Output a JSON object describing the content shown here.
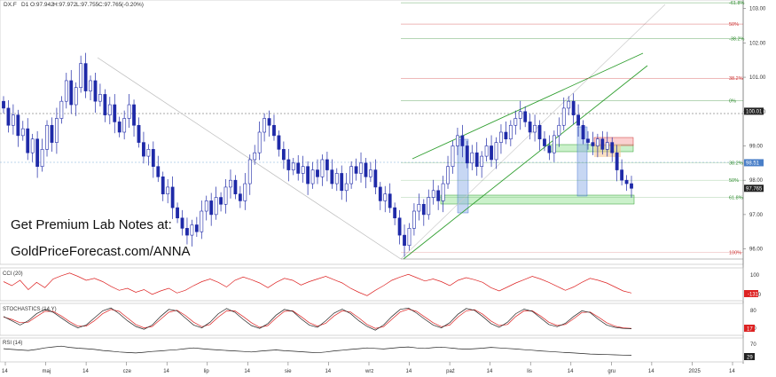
{
  "header": {
    "symbol": "DX.F",
    "timeframe": "D1",
    "open": "O:97.942",
    "high": "H:97.972",
    "low": "L:97.755",
    "close": "C:97.765",
    "change": "(-0.20%)"
  },
  "promo": {
    "line1": "Get Premium Lab Notes at:",
    "line2": "GoldPriceForecast.com/ANNA"
  },
  "colors": {
    "bull": "#1f2aa8",
    "bear": "#1f2aa8",
    "trend": "#2e9e2e",
    "fib_red": "#cc3333",
    "fib_green": "#2e8b2e",
    "cci": "#dd2222",
    "stoch_main": "#222222",
    "stoch_signal": "#dd2222",
    "rsi": "#222222",
    "zone_green": "#90e090",
    "zone_blue": "#8fb0e8",
    "zone_red": "#f4a0a0"
  },
  "chart_data": {
    "type": "candlestick",
    "price_axis": {
      "range": [
        95.55,
        103.25
      ],
      "ticks": [
        "103.00",
        "102.00",
        "101.00",
        "100.00",
        "99.00",
        "98.00",
        "97.00",
        "96.00"
      ],
      "tick_values": [
        103,
        102,
        101,
        100,
        99,
        98,
        97,
        96
      ],
      "markers": [
        {
          "label": "100.01",
          "value": 100.01,
          "style": "dark"
        },
        {
          "label": "98.51",
          "value": 98.51,
          "style": "blue"
        },
        {
          "label": "97.765",
          "value": 97.765,
          "style": "dark"
        }
      ]
    },
    "x_axis_labels": [
      "14",
      "maj",
      "14",
      "cze",
      "14",
      "lip",
      "14",
      "sie",
      "14",
      "wrz",
      "14",
      "paź",
      "14",
      "lis",
      "14",
      "gru",
      "14",
      "2025",
      "14"
    ],
    "fib_levels_upper": [
      {
        "label": "-61.8%",
        "value": 103.17,
        "color": "green"
      },
      {
        "label": "50%",
        "value": 102.55,
        "color": "red"
      },
      {
        "label": "-38.2%",
        "value": 102.12,
        "color": "green"
      },
      {
        "label": "38.2%",
        "value": 100.97,
        "color": "red"
      },
      {
        "label": "0%",
        "value": 100.32,
        "color": "green"
      }
    ],
    "fib_levels_lower": [
      {
        "label": "38.2%",
        "value": 98.51,
        "color": "green"
      },
      {
        "label": "50%",
        "value": 98.0,
        "color": "green"
      },
      {
        "label": "61.8%",
        "value": 97.5,
        "color": "green"
      },
      {
        "label": "100%",
        "value": 95.9,
        "color": "red"
      }
    ],
    "closes": [
      100.1,
      99.6,
      99.9,
      99.3,
      99.5,
      98.8,
      99.2,
      98.4,
      98.9,
      99.6,
      99.1,
      99.8,
      100.3,
      100.9,
      100.2,
      100.7,
      101.4,
      100.6,
      100.9,
      100.3,
      100.5,
      99.9,
      100.2,
      99.7,
      99.4,
      99.8,
      100.2,
      99.6,
      99.1,
      98.7,
      98.9,
      98.4,
      98.1,
      97.6,
      97.8,
      97.2,
      96.9,
      96.6,
      96.4,
      96.7,
      96.5,
      97.1,
      97.4,
      97.0,
      97.5,
      97.3,
      97.8,
      98.0,
      97.6,
      97.4,
      97.9,
      98.6,
      98.8,
      99.4,
      99.8,
      99.6,
      99.3,
      98.9,
      98.6,
      98.3,
      98.5,
      98.2,
      98.4,
      97.9,
      98.3,
      98.1,
      98.6,
      98.3,
      97.9,
      98.2,
      97.7,
      97.9,
      98.4,
      98.2,
      98.5,
      98.1,
      98.3,
      97.8,
      97.4,
      97.6,
      97.2,
      96.9,
      96.4,
      96.1,
      96.6,
      97.1,
      97.3,
      97.0,
      97.5,
      97.7,
      97.4,
      97.9,
      98.4,
      99.0,
      99.3,
      99.0,
      98.5,
      98.8,
      98.4,
      98.7,
      99.0,
      98.6,
      99.1,
      99.4,
      99.2,
      99.6,
      99.8,
      100.0,
      99.7,
      99.4,
      99.6,
      99.2,
      99.0,
      98.8,
      99.3,
      99.6,
      100.1,
      100.3,
      99.9,
      99.6,
      99.2,
      99.1,
      99.0,
      99.2,
      98.9,
      99.1,
      98.8,
      98.3,
      98.0,
      97.9,
      97.765
    ],
    "cci_axis": [
      "100",
      "-100"
    ],
    "cci_label": "CCI (20)",
    "cci_value": "-131",
    "cci": [
      40,
      -20,
      60,
      -80,
      30,
      -50,
      80,
      130,
      170,
      120,
      60,
      90,
      40,
      -30,
      -90,
      -60,
      -120,
      -80,
      -150,
      -100,
      -60,
      -130,
      -90,
      -20,
      40,
      80,
      30,
      -40,
      60,
      110,
      70,
      20,
      -50,
      30,
      90,
      60,
      -10,
      40,
      80,
      120,
      70,
      20,
      -60,
      -120,
      -170,
      -90,
      -20,
      60,
      110,
      150,
      100,
      50,
      80,
      40,
      -20,
      60,
      100,
      70,
      30,
      -50,
      -100,
      -40,
      20,
      70,
      120,
      80,
      30,
      -30,
      -90,
      -40,
      30,
      90,
      60,
      20,
      -40,
      -100,
      -131
    ],
    "stoch_axis": [
      "80",
      "20"
    ],
    "stoch_label": "STOCHASTICS (14,Y)",
    "stoch_value": "17",
    "stoch_main": [
      60,
      45,
      30,
      45,
      70,
      85,
      75,
      55,
      35,
      20,
      30,
      55,
      80,
      90,
      70,
      45,
      25,
      15,
      30,
      60,
      85,
      80,
      55,
      30,
      20,
      40,
      70,
      88,
      75,
      50,
      28,
      18,
      35,
      65,
      85,
      78,
      52,
      30,
      22,
      45,
      72,
      86,
      70,
      45,
      25,
      12,
      30,
      60,
      85,
      90,
      72,
      50,
      30,
      20,
      38,
      68,
      88,
      82,
      60,
      35,
      22,
      40,
      70,
      86,
      78,
      55,
      32,
      24,
      36,
      60,
      80,
      74,
      50,
      30,
      22,
      18,
      17
    ],
    "stoch_signal": [
      58,
      50,
      38,
      40,
      60,
      78,
      78,
      62,
      42,
      26,
      26,
      45,
      70,
      85,
      78,
      55,
      32,
      20,
      25,
      50,
      75,
      82,
      64,
      40,
      24,
      32,
      58,
      80,
      80,
      60,
      38,
      22,
      28,
      55,
      78,
      80,
      60,
      38,
      26,
      36,
      62,
      80,
      76,
      55,
      32,
      18,
      24,
      50,
      76,
      86,
      78,
      58,
      38,
      24,
      30,
      58,
      80,
      84,
      68,
      44,
      28,
      32,
      60,
      80,
      80,
      62,
      40,
      28,
      32,
      52,
      74,
      76,
      58,
      38,
      26,
      20,
      18
    ],
    "rsi_axis": [
      "70",
      "30"
    ],
    "rsi_label": "RSI (14)",
    "rsi_value": "29",
    "rsi": [
      55,
      52,
      50,
      48,
      52,
      58,
      62,
      65,
      60,
      57,
      55,
      52,
      48,
      45,
      42,
      40,
      38,
      41,
      44,
      46,
      49,
      51,
      55,
      58,
      55,
      52,
      50,
      48,
      46,
      44,
      42,
      45,
      48,
      50,
      47,
      45,
      43,
      41,
      39,
      42,
      46,
      49,
      52,
      55,
      58,
      56,
      54,
      57,
      60,
      62,
      58,
      56,
      59,
      61,
      58,
      55,
      53,
      55,
      57,
      60,
      58,
      56,
      54,
      51,
      49,
      46,
      44,
      42,
      40,
      38,
      36,
      34,
      33,
      32,
      31,
      30,
      29
    ]
  }
}
